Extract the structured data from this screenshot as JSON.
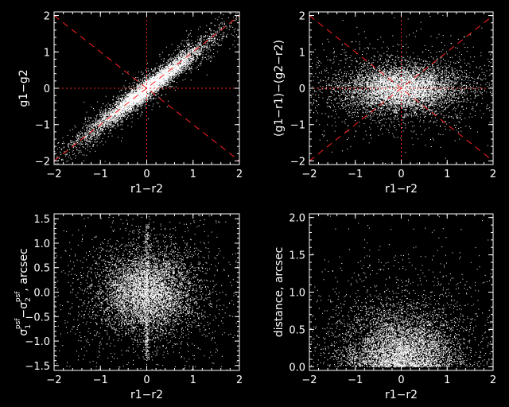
{
  "chart_data": [
    {
      "type": "scatter",
      "xlabel": "r1−r2",
      "ylabel": "g1−g2",
      "xlim": [
        -2,
        2
      ],
      "ylim": [
        -2.1,
        2.1
      ],
      "xticks": [
        -2,
        -1,
        0,
        1,
        2
      ],
      "yticks": [
        -2,
        -1,
        0,
        1,
        2
      ],
      "xtick_labels": [
        "−2",
        "−1",
        "0",
        "1",
        "2"
      ],
      "ytick_labels": [
        "−2",
        "−1",
        "0",
        "1",
        "2"
      ],
      "point_color": "#ffffff",
      "reference_color": "#ff2020",
      "reference_lines": [
        {
          "style": "dotted",
          "from": [
            -2,
            0
          ],
          "to": [
            2,
            0
          ]
        },
        {
          "style": "dotted",
          "from": [
            0,
            -2.1
          ],
          "to": [
            0,
            2.1
          ]
        },
        {
          "style": "dashed",
          "from": [
            -2,
            -2
          ],
          "to": [
            2,
            2
          ]
        },
        {
          "style": "dashed",
          "from": [
            -2,
            2
          ],
          "to": [
            2,
            -2
          ]
        }
      ],
      "distribution": {
        "center": [
          0,
          0
        ],
        "spread": [
          0.55,
          0.55
        ],
        "correlation": 0.9
      }
    },
    {
      "type": "scatter",
      "xlabel": "r1−r2",
      "ylabel": "(g1−r1)−(g2−r2)",
      "xlim": [
        -2,
        2
      ],
      "ylim": [
        -2.1,
        2.1
      ],
      "xticks": [
        -2,
        -1,
        0,
        1,
        2
      ],
      "yticks": [
        -2,
        -1,
        0,
        1,
        2
      ],
      "xtick_labels": [
        "−2",
        "−1",
        "0",
        "1",
        "2"
      ],
      "ytick_labels": [
        "−2",
        "−1",
        "0",
        "1",
        "2"
      ],
      "point_color": "#ffffff",
      "reference_color": "#ff2020",
      "reference_lines": [
        {
          "style": "dotted",
          "from": [
            -2,
            0
          ],
          "to": [
            2,
            0
          ]
        },
        {
          "style": "dotted",
          "from": [
            0,
            -2.1
          ],
          "to": [
            0,
            2.1
          ]
        },
        {
          "style": "dashed",
          "from": [
            -2,
            -2
          ],
          "to": [
            2,
            2
          ]
        },
        {
          "style": "dashed",
          "from": [
            -2,
            2
          ],
          "to": [
            2,
            -2
          ]
        }
      ],
      "distribution": {
        "center": [
          0,
          0
        ],
        "spread": [
          0.6,
          0.3
        ],
        "correlation": 0.0
      }
    },
    {
      "type": "scatter",
      "xlabel": "r1−r2",
      "ylabel_parts": [
        "σ",
        "1",
        "psf",
        "−σ",
        "2",
        "psf",
        ", arcsec"
      ],
      "xlim": [
        -2,
        2
      ],
      "ylim": [
        -1.6,
        1.6
      ],
      "xticks": [
        -2,
        -1,
        0,
        1,
        2
      ],
      "yticks": [
        -1.5,
        -1.0,
        -0.5,
        0.0,
        0.5,
        1.0,
        1.5
      ],
      "xtick_labels": [
        "−2",
        "−1",
        "0",
        "1",
        "2"
      ],
      "ytick_labels": [
        "−1.5",
        "−1.0",
        "−0.5",
        "0.0",
        "0.5",
        "1.0",
        "1.5"
      ],
      "point_color": "#ffffff",
      "distribution": {
        "center": [
          0,
          0
        ],
        "spread": [
          0.5,
          0.4
        ],
        "correlation": 0.0
      }
    },
    {
      "type": "scatter",
      "xlabel": "r1−r2",
      "ylabel": "distance, arcsec",
      "xlim": [
        -2,
        2
      ],
      "ylim": [
        -0.05,
        2.05
      ],
      "xticks": [
        -2,
        -1,
        0,
        1,
        2
      ],
      "yticks": [
        0.0,
        0.5,
        1.0,
        1.5,
        2.0
      ],
      "xtick_labels": [
        "−2",
        "−1",
        "0",
        "1",
        "2"
      ],
      "ytick_labels": [
        "0.0",
        "0.5",
        "1.0",
        "1.5",
        "2.0"
      ],
      "point_color": "#ffffff",
      "distribution": {
        "center": [
          0,
          0
        ],
        "spread": [
          0.6,
          0.35
        ],
        "correlation": 0.0
      }
    }
  ]
}
